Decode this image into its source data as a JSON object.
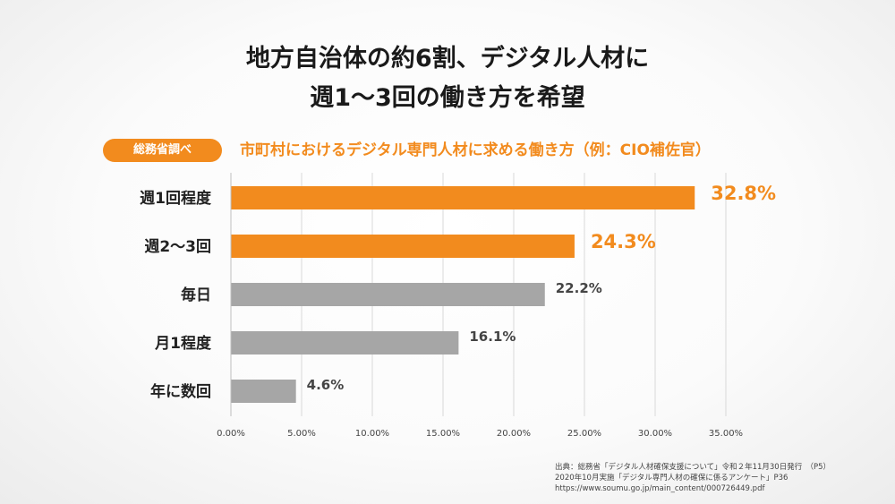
{
  "headline": {
    "line1": "地方自治体の約6割、デジタル人材に",
    "line2": "週1～3回の働き方を希望"
  },
  "badge": "総務省調べ",
  "chart_data": {
    "type": "bar",
    "orientation": "horizontal",
    "title": "市町村におけるデジタル専門人材に求める働き方（例：CIO補佐官）",
    "categories": [
      "週1回程度",
      "週2～3回",
      "毎日",
      "月1程度",
      "年に数回"
    ],
    "values": [
      32.8,
      24.3,
      22.2,
      16.1,
      4.6
    ],
    "value_labels": [
      "32.8%",
      "24.3%",
      "22.2%",
      "16.1%",
      "4.6%"
    ],
    "highlighted": [
      true,
      true,
      false,
      false,
      false
    ],
    "xlim": [
      0,
      35
    ],
    "xticks": [
      0,
      5,
      10,
      15,
      20,
      25,
      30,
      35
    ],
    "xtick_labels": [
      "0.00%",
      "5.00%",
      "10.00%",
      "15.00%",
      "20.00%",
      "25.00%",
      "30.00%",
      "35.00%"
    ],
    "grid": true,
    "colors": {
      "highlight": "#f28b1e",
      "normal": "#a6a6a6"
    },
    "xlabel": "",
    "ylabel": ""
  },
  "source": {
    "line1": "出典：総務省「デジタル人材確保支援について」令和２年11月30日発行　（P5）",
    "line2": "2020年10月実施「デジタル専門人材の確保に係るアンケート」P36",
    "line3": "https://www.soumu.go.jp/main_content/000726449.pdf"
  }
}
